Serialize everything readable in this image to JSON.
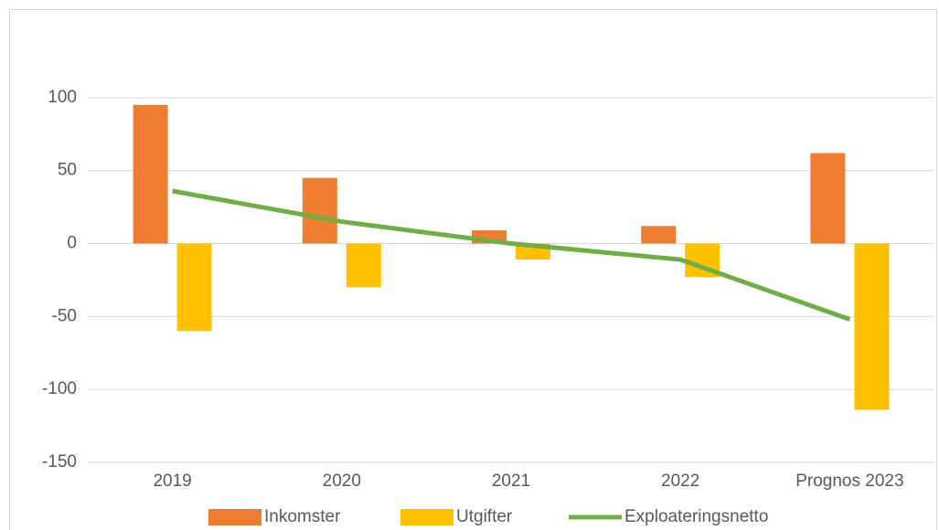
{
  "chart_data": {
    "type": "bar_line",
    "categories": [
      "2019",
      "2020",
      "2021",
      "2022",
      "Prognos 2023"
    ],
    "series": [
      {
        "name": "Inkomster",
        "type": "bar",
        "color": "#ed7d31",
        "values": [
          95,
          45,
          9,
          12,
          62
        ]
      },
      {
        "name": "Utgifter",
        "type": "bar",
        "color": "#ffc000",
        "values": [
          -60,
          -30,
          -11,
          -23,
          -114
        ]
      },
      {
        "name": "Exploateringsnetto",
        "type": "line",
        "color": "#70ad47",
        "values": [
          36,
          15,
          0,
          -11,
          -52
        ]
      }
    ],
    "ylim": [
      -150,
      150
    ],
    "yticks": [
      -150,
      -100,
      -50,
      0,
      50,
      100
    ],
    "grid": true,
    "legend": "bottom"
  }
}
